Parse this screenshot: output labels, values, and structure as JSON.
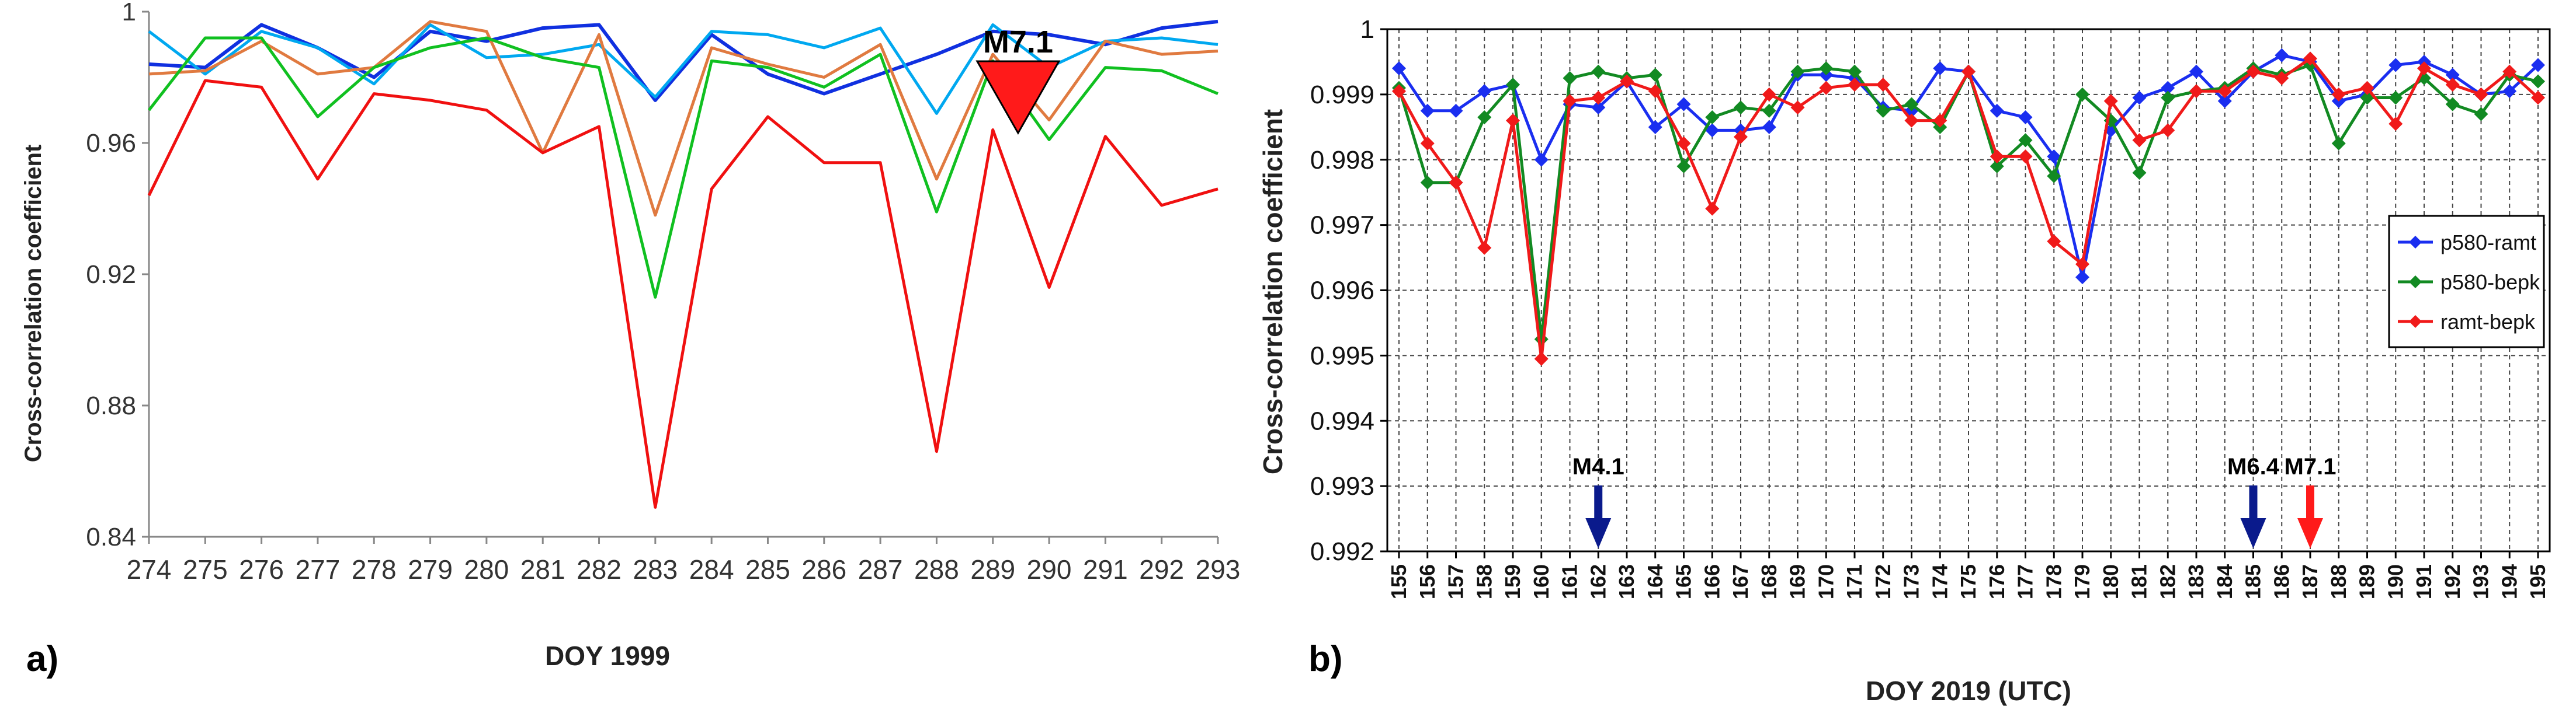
{
  "chart_data": [
    {
      "type": "line",
      "panel_label": "a)",
      "title": "",
      "xlabel": "DOY 1999",
      "ylabel": "Cross-correlation coefficient",
      "ylim": [
        0.84,
        1.0
      ],
      "yticks": [
        "0.84",
        "0.88",
        "0.92",
        "0.96",
        "1"
      ],
      "grid": false,
      "categories": [
        "274",
        "275",
        "276",
        "277",
        "278",
        "279",
        "280",
        "281",
        "282",
        "283",
        "284",
        "285",
        "286",
        "287",
        "288",
        "289",
        "290",
        "291",
        "292",
        "293"
      ],
      "annotations": [
        {
          "text": "M7.1",
          "at_x": "289.5",
          "marker": "downward red triangle",
          "color": "#ff1a1a"
        }
      ],
      "series": [
        {
          "name": "blue",
          "color": "#1030e0",
          "values": [
            0.984,
            0.983,
            0.996,
            0.989,
            0.98,
            0.994,
            0.991,
            0.995,
            0.996,
            0.973,
            0.993,
            0.981,
            0.975,
            0.981,
            0.987,
            0.994,
            0.993,
            0.99,
            0.995,
            0.997
          ]
        },
        {
          "name": "cyan",
          "color": "#00a8f0",
          "values": [
            0.994,
            0.981,
            0.994,
            0.989,
            0.978,
            0.996,
            0.986,
            0.987,
            0.99,
            0.974,
            0.994,
            0.993,
            0.989,
            0.995,
            0.969,
            0.996,
            0.983,
            0.991,
            0.992,
            0.99
          ]
        },
        {
          "name": "orange",
          "color": "#e07a40",
          "values": [
            0.981,
            0.982,
            0.991,
            0.981,
            0.983,
            0.997,
            0.994,
            0.957,
            0.993,
            0.938,
            0.989,
            0.984,
            0.98,
            0.99,
            0.949,
            0.987,
            0.967,
            0.991,
            0.987,
            0.988
          ]
        },
        {
          "name": "green",
          "color": "#10c020",
          "values": [
            0.97,
            0.992,
            0.992,
            0.968,
            0.983,
            0.989,
            0.992,
            0.986,
            0.983,
            0.913,
            0.985,
            0.983,
            0.977,
            0.987,
            0.939,
            0.985,
            0.961,
            0.983,
            0.982,
            0.975
          ]
        },
        {
          "name": "red",
          "color": "#f01010",
          "values": [
            0.944,
            0.979,
            0.977,
            0.949,
            0.975,
            0.973,
            0.97,
            0.957,
            0.965,
            0.849,
            0.946,
            0.968,
            0.954,
            0.954,
            0.866,
            0.964,
            0.916,
            0.962,
            0.941,
            0.946
          ]
        }
      ]
    },
    {
      "type": "line",
      "panel_label": "b)",
      "title": "",
      "xlabel": "DOY 2019 (UTC)",
      "ylabel": "Cross-correlation coefficient",
      "ylim": [
        0.992,
        1.0
      ],
      "yticks": [
        "0.992",
        "0.993",
        "0.994",
        "0.995",
        "0.996",
        "0.997",
        "0.998",
        "0.999",
        "1"
      ],
      "grid": true,
      "legend_position": "right",
      "categories": [
        "155",
        "156",
        "157",
        "158",
        "159",
        "160",
        "161",
        "162",
        "163",
        "164",
        "165",
        "166",
        "167",
        "168",
        "169",
        "170",
        "171",
        "172",
        "173",
        "174",
        "175",
        "176",
        "177",
        "178",
        "179",
        "180",
        "181",
        "182",
        "183",
        "184",
        "185",
        "186",
        "187",
        "188",
        "189",
        "190",
        "191",
        "192",
        "193",
        "194",
        "195"
      ],
      "annotations": [
        {
          "text": "M4.1",
          "at_x": "162",
          "arrow_color": "#0a1a8c"
        },
        {
          "text": "M6.4",
          "at_x": "185",
          "arrow_color": "#0a1a8c"
        },
        {
          "text": "M7.1",
          "at_x": "187",
          "arrow_color": "#ff1a1a"
        }
      ],
      "series": [
        {
          "name": "p580-ramt",
          "color": "#1a2ef0",
          "values": [
            0.9994,
            0.99875,
            0.99875,
            0.99905,
            0.99915,
            0.998,
            0.99885,
            0.9988,
            0.9992,
            0.9985,
            0.99885,
            0.99845,
            0.99845,
            0.9985,
            0.9993,
            0.9993,
            0.99925,
            0.9988,
            0.99875,
            0.9994,
            0.99935,
            0.99875,
            0.99865,
            0.99805,
            0.9962,
            0.99845,
            0.99895,
            0.9991,
            0.99935,
            0.9989,
            0.99935,
            0.9996,
            0.9995,
            0.9989,
            0.999,
            0.99945,
            0.9995,
            0.9993,
            0.999,
            0.99905,
            0.99945
          ]
        },
        {
          "name": "p580-bepk",
          "color": "#128a22",
          "values": [
            0.9991,
            0.99765,
            0.99765,
            0.99865,
            0.99915,
            0.99525,
            0.99925,
            0.99935,
            0.99925,
            0.9993,
            0.9979,
            0.99865,
            0.9988,
            0.99875,
            0.99935,
            0.9994,
            0.99935,
            0.99875,
            0.99885,
            0.9985,
            0.99935,
            0.9979,
            0.9983,
            0.99775,
            0.999,
            0.9986,
            0.9978,
            0.99895,
            0.99905,
            0.9991,
            0.9994,
            0.9993,
            0.99945,
            0.99825,
            0.99895,
            0.99895,
            0.99925,
            0.99885,
            0.9987,
            0.9993,
            0.9992
          ]
        },
        {
          "name": "ramt-bepk",
          "color": "#f01a1a",
          "values": [
            0.99905,
            0.99825,
            0.99765,
            0.99665,
            0.9986,
            0.99495,
            0.9989,
            0.99895,
            0.9992,
            0.99905,
            0.99825,
            0.99725,
            0.99835,
            0.999,
            0.9988,
            0.9991,
            0.99915,
            0.99915,
            0.9986,
            0.9986,
            0.99935,
            0.99805,
            0.99805,
            0.99675,
            0.9964,
            0.9989,
            0.9983,
            0.99845,
            0.99905,
            0.99905,
            0.99935,
            0.99925,
            0.99955,
            0.999,
            0.9991,
            0.99855,
            0.9994,
            0.99915,
            0.999,
            0.99935,
            0.99895
          ]
        }
      ]
    }
  ]
}
